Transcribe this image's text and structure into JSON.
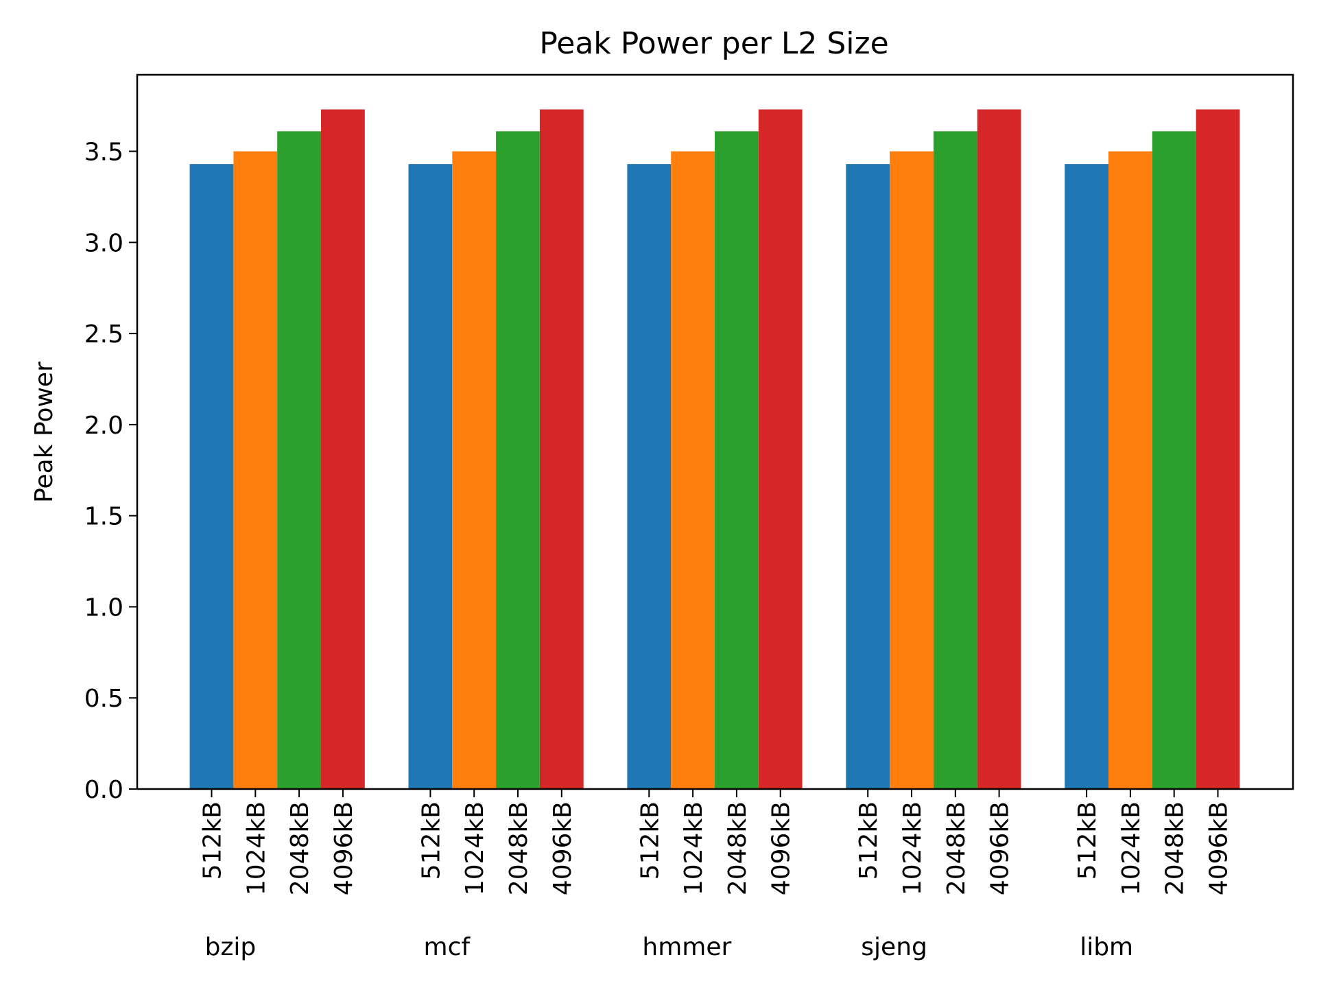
{
  "chart_data": {
    "type": "bar",
    "title": "Peak Power per L2 Size",
    "xlabel": "",
    "ylabel": "Peak Power",
    "ylim": [
      0,
      3.92
    ],
    "yticks": [
      "0.0",
      "0.5",
      "1.0",
      "1.5",
      "2.0",
      "2.5",
      "3.0",
      "3.5"
    ],
    "grid": false,
    "legend": "none",
    "categories": [
      "bzip",
      "mcf",
      "hmmer",
      "sjeng",
      "libm"
    ],
    "series": [
      {
        "name": "512kB",
        "color": "#1f77b4",
        "values": [
          3.43,
          3.43,
          3.43,
          3.43,
          3.43
        ]
      },
      {
        "name": "1024kB",
        "color": "#ff7f0e",
        "values": [
          3.5,
          3.5,
          3.5,
          3.5,
          3.5
        ]
      },
      {
        "name": "2048kB",
        "color": "#2ca02c",
        "values": [
          3.61,
          3.61,
          3.61,
          3.61,
          3.61
        ]
      },
      {
        "name": "4096kB",
        "color": "#d62728",
        "values": [
          3.73,
          3.73,
          3.73,
          3.73,
          3.73
        ]
      }
    ]
  }
}
